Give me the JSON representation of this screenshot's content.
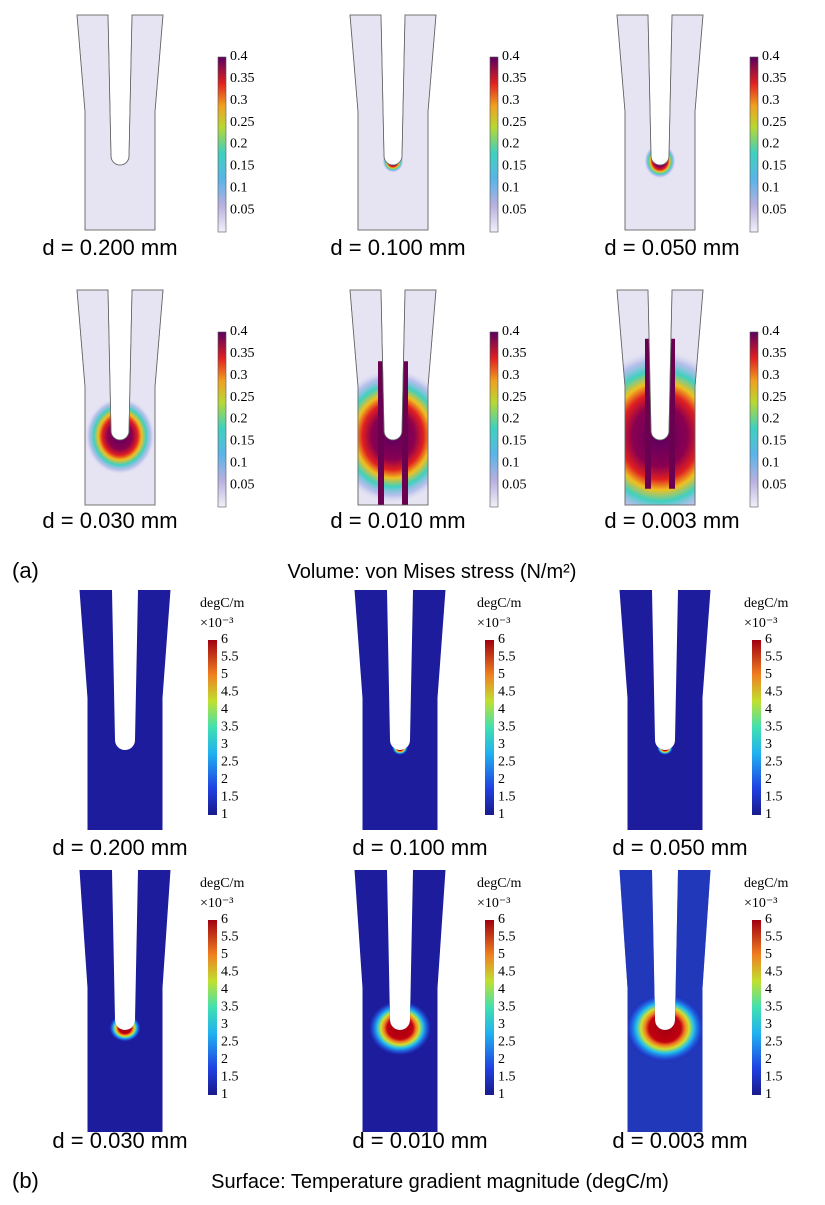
{
  "panel_a": {
    "letter": "(a)",
    "caption": "Volume: von Mises stress (N/m²)",
    "colorbar_ticks": [
      "0.4",
      "0.35",
      "0.3",
      "0.25",
      "0.2",
      "0.15",
      "0.1",
      "0.05"
    ],
    "plots": [
      {
        "label": "d = 0.200 mm"
      },
      {
        "label": "d = 0.100 mm"
      },
      {
        "label": "d = 0.050 mm"
      },
      {
        "label": "d = 0.030 mm"
      },
      {
        "label": "d = 0.010 mm"
      },
      {
        "label": "d = 0.003 mm"
      }
    ]
  },
  "panel_b": {
    "letter": "(b)",
    "caption": "Surface: Temperature gradient magnitude (degC/m)",
    "colorbar_unit": "degC/m",
    "colorbar_exponent": "×10⁻³",
    "colorbar_ticks": [
      "6",
      "5.5",
      "5",
      "4.5",
      "4",
      "3.5",
      "3",
      "2.5",
      "2",
      "1.5",
      "1"
    ],
    "plots": [
      {
        "label": "d = 0.200 mm"
      },
      {
        "label": "d = 0.100 mm"
      },
      {
        "label": "d = 0.050 mm"
      },
      {
        "label": "d = 0.030 mm"
      },
      {
        "label": "d = 0.010 mm"
      },
      {
        "label": "d = 0.003 mm"
      }
    ]
  }
}
